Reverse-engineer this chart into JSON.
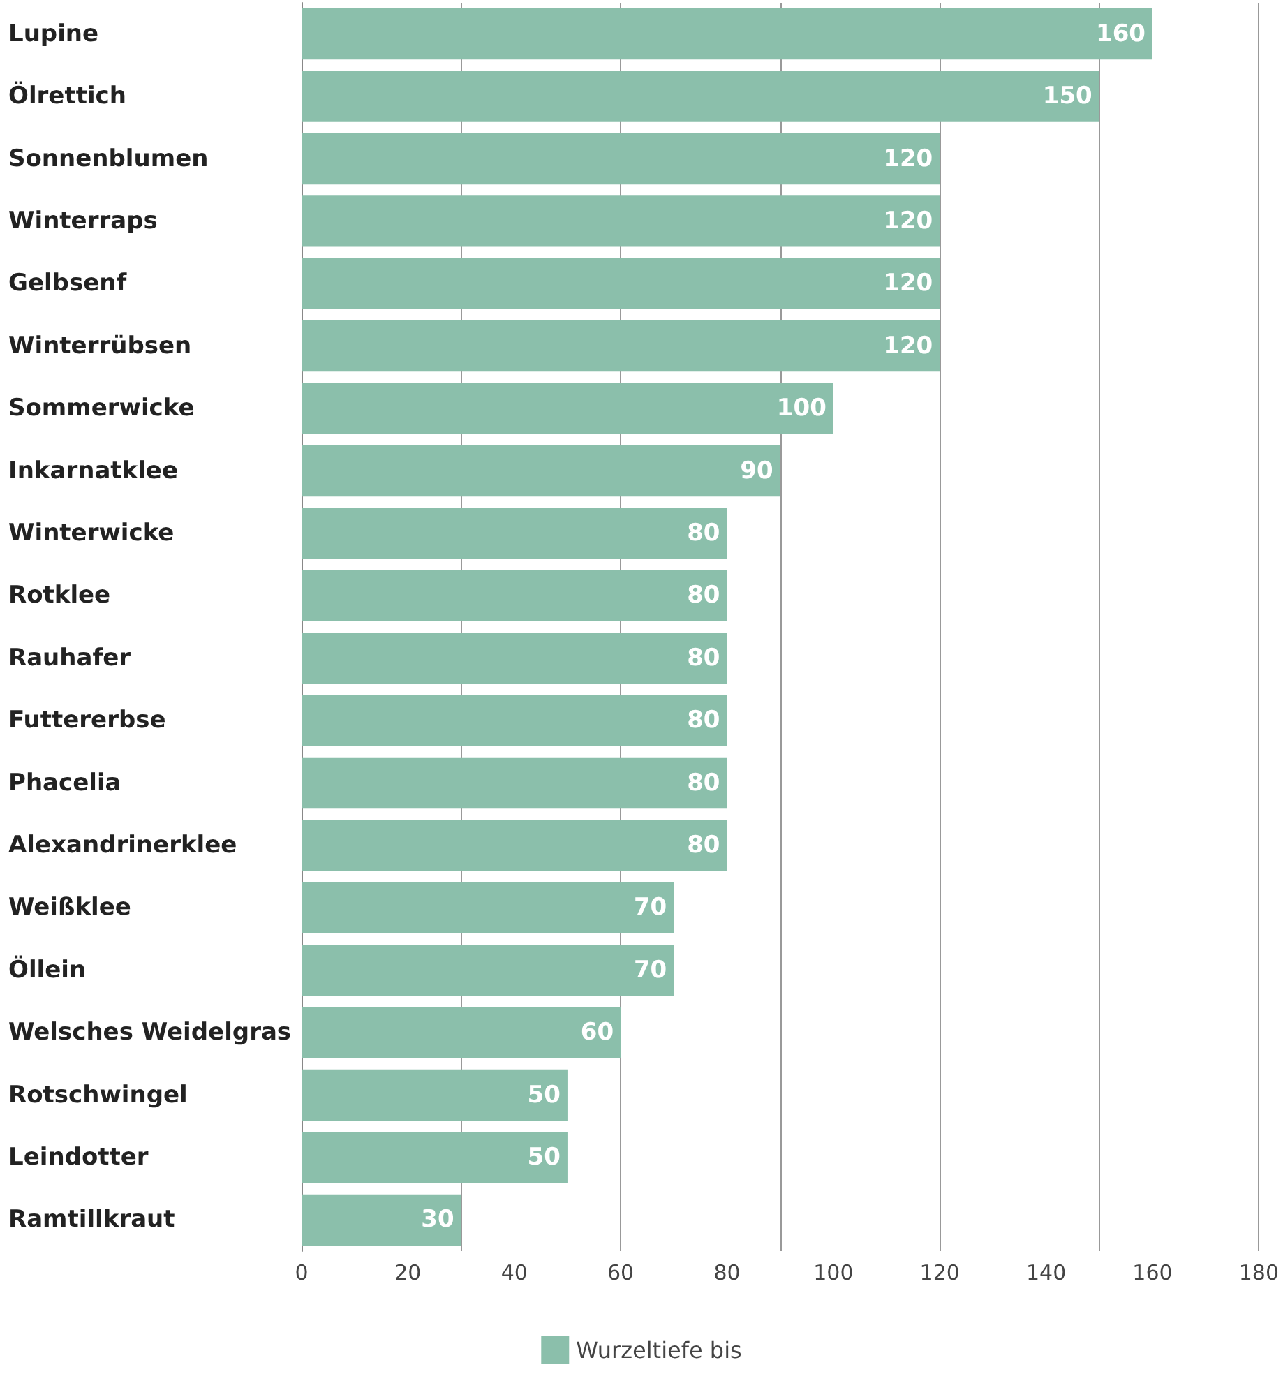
{
  "chart_data": {
    "type": "bar",
    "orientation": "horizontal",
    "categories": [
      "Lupine",
      "Ölrettich",
      "Sonnenblumen",
      "Winterraps",
      "Gelbsenf",
      "Winterrübsen",
      "Sommerwicke",
      "Inkarnatklee",
      "Winterwicke",
      "Rotklee",
      "Rauhafer",
      "Futtererbse",
      "Phacelia",
      "Alexandrinerklee",
      "Weißklee",
      "Öllein",
      "Welsches Weidelgras",
      "Rotschwingel",
      "Leindotter",
      "Ramtillkraut"
    ],
    "series": [
      {
        "name": "Wurzeltiefe bis",
        "color": "#8bbfab",
        "values": [
          160,
          150,
          120,
          120,
          120,
          120,
          100,
          90,
          80,
          80,
          80,
          80,
          80,
          80,
          70,
          70,
          60,
          50,
          50,
          30
        ]
      }
    ],
    "xlim": [
      0,
      180
    ],
    "xticks": [
      0,
      20,
      40,
      60,
      80,
      100,
      120,
      140,
      160,
      180
    ],
    "grid": "x",
    "legend": "bottom",
    "data_labels": true
  }
}
